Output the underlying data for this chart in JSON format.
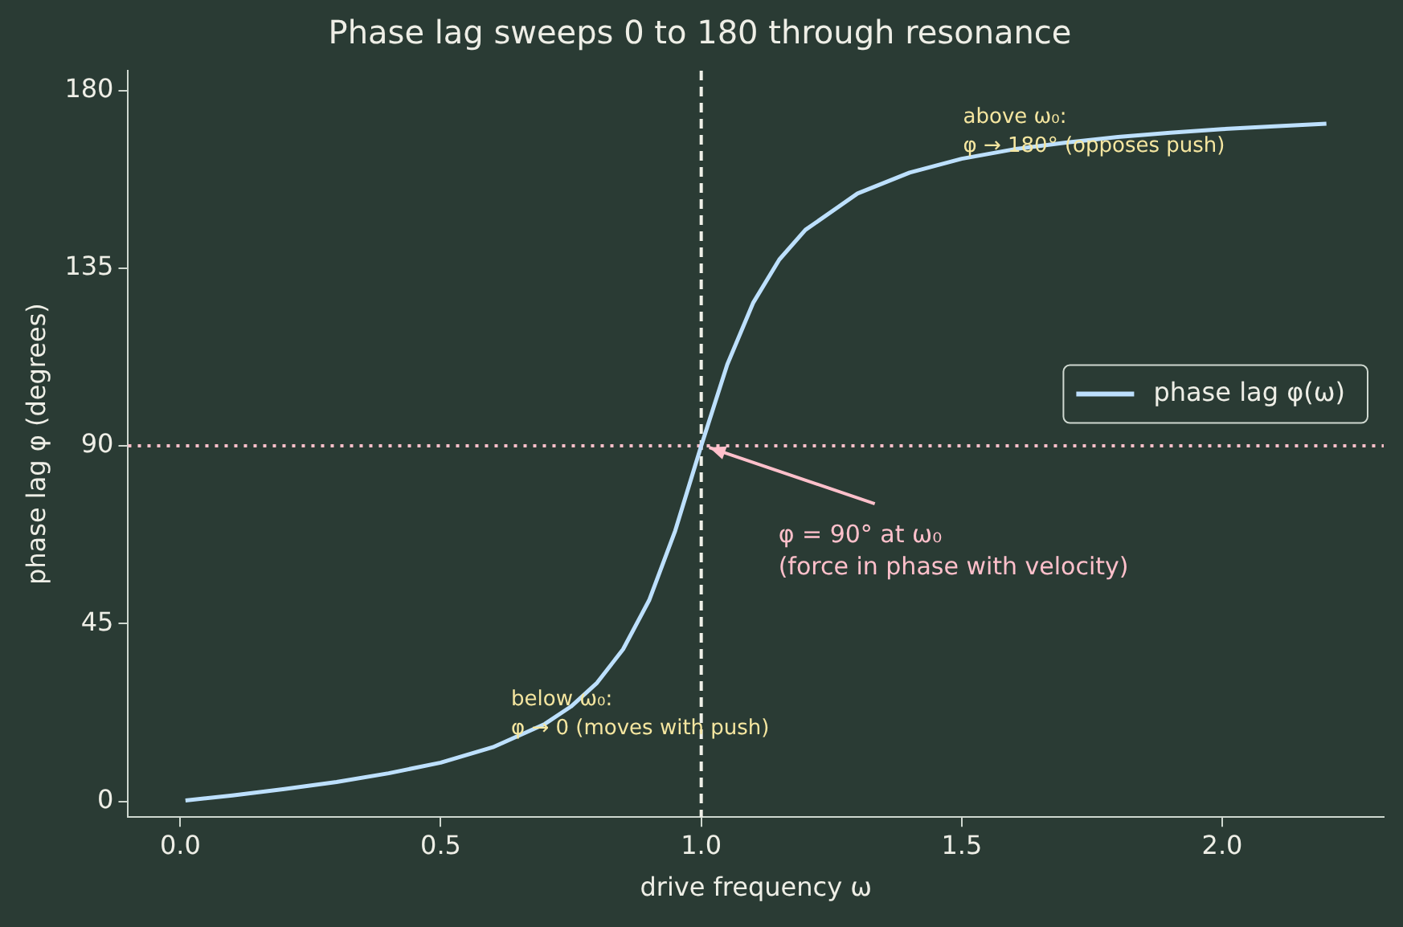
{
  "chart_data": {
    "type": "line",
    "title": "Phase lag sweeps 0 to 180 through resonance",
    "xlabel": "drive frequency ω",
    "ylabel": "phase lag φ (degrees)",
    "series": [
      {
        "name": "phase lag φ(ω)",
        "color": "#bde0fe",
        "x": [
          0.01,
          0.1,
          0.2,
          0.3,
          0.4,
          0.5,
          0.6,
          0.7,
          0.75,
          0.8,
          0.85,
          0.9,
          0.95,
          1.0,
          1.05,
          1.1,
          1.15,
          1.2,
          1.3,
          1.4,
          1.5,
          1.6,
          1.7,
          1.8,
          1.9,
          2.0,
          2.1,
          2.2
        ],
        "values": [
          0.2,
          1.5,
          3.1,
          4.9,
          7.1,
          9.8,
          13.7,
          19.6,
          24.0,
          30.0,
          38.5,
          50.9,
          68.5,
          90,
          110.6,
          126.3,
          137.2,
          144.7,
          153.9,
          159.2,
          162.7,
          165.1,
          166.8,
          168.2,
          169.3,
          170.2,
          170.9,
          171.6
        ]
      }
    ],
    "xlim": [
      -0.1,
      2.31
    ],
    "ylim": [
      -4,
      185
    ],
    "xticks": [
      {
        "value": 0,
        "label": "0.0"
      },
      {
        "value": 0.5,
        "label": "0.5"
      },
      {
        "value": 1,
        "label": "1.0"
      },
      {
        "value": 1.5,
        "label": "1.5"
      },
      {
        "value": 2,
        "label": "2.0"
      }
    ],
    "yticks": [
      0,
      45,
      90,
      135,
      180
    ],
    "ref_lines": [
      {
        "axis": "x",
        "value": 1,
        "color": "#f0f0e8",
        "line_style": "dashed"
      },
      {
        "axis": "y",
        "value": 90,
        "color": "#ffc0cb",
        "line_style": "dotted"
      }
    ],
    "annotations": [
      {
        "text": "φ = 90° at ω₀\n(force in phase with velocity)",
        "x": 1,
        "y": 90
      },
      "below ω₀:\nφ → 0 (moves with push)",
      "above ω₀:\nφ → 180° (opposes push)"
    ],
    "legend": "right",
    "grid": false,
    "marker": "none",
    "line_style": "solid"
  }
}
